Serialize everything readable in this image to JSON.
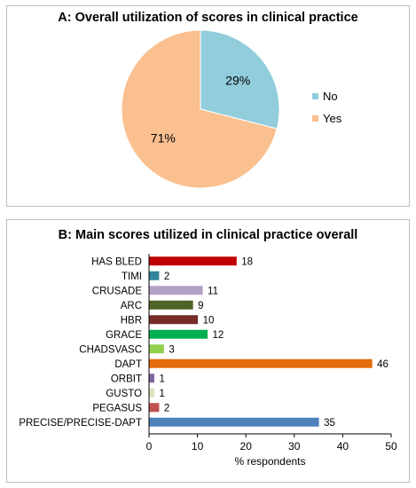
{
  "chart_data": [
    {
      "type": "pie",
      "title": "A: Overall utilization of scores in clinical practice",
      "slices": [
        {
          "label": "No",
          "value": 29,
          "value_label": "29%",
          "color": "#92cddc"
        },
        {
          "label": "Yes",
          "value": 71,
          "value_label": "71%",
          "color": "#fac090"
        }
      ],
      "legend": "right"
    },
    {
      "type": "bar",
      "orientation": "horizontal",
      "title": "B: Main scores utilized in clinical practice overall",
      "xlabel": "% respondents",
      "ylabel": "",
      "xlim": [
        0,
        50
      ],
      "xticks": [
        "0",
        "10",
        "20",
        "30",
        "40",
        "50"
      ],
      "grid": false,
      "categories": [
        "HAS BLED",
        "TIMI",
        "CRUSADE",
        "ARC",
        "HBR",
        "GRACE",
        "CHADSVASC",
        "DAPT",
        "ORBIT",
        "GUSTO",
        "PEGASUS",
        "PRECISE/PRECISE-DAPT"
      ],
      "values": [
        18,
        2,
        11,
        9,
        10,
        12,
        3,
        46,
        1,
        1,
        2,
        35
      ],
      "value_labels": [
        "18",
        "2",
        "11",
        "9",
        "10",
        "12",
        "3",
        "46",
        "1",
        "1",
        "2",
        "35"
      ],
      "colors": [
        "#c00000",
        "#31859c",
        "#b3a2c7",
        "#4f6228",
        "#772c2a",
        "#00b050",
        "#92d050",
        "#e46c0a",
        "#8064a2",
        "#d7e4bd",
        "#c0504d",
        "#4f81bd"
      ]
    }
  ]
}
